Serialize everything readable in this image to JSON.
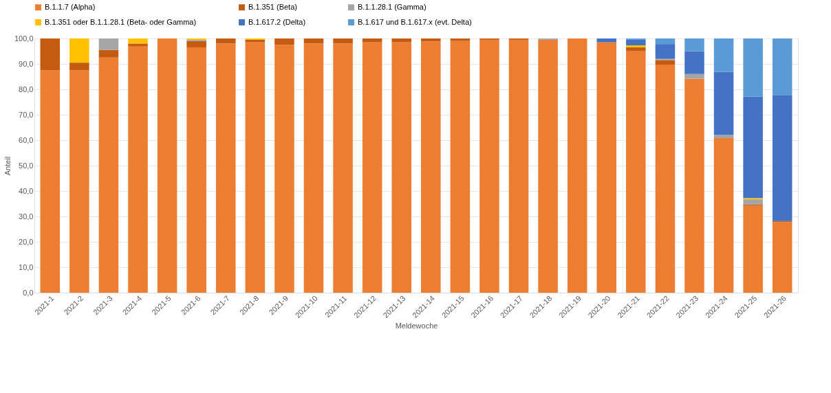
{
  "chart_data": {
    "type": "bar",
    "stacked": true,
    "xlabel": "Meldewoche",
    "ylabel": "Anteil",
    "categories": [
      "2021-1",
      "2021-2",
      "2021-3",
      "2021-4",
      "2021-5",
      "2021-6",
      "2021-7",
      "2021-8",
      "2021-9",
      "2021-10",
      "2021-11",
      "2021-12",
      "2021-13",
      "2021-14",
      "2021-15",
      "2021-16",
      "2021-17",
      "2021-18",
      "2021-19",
      "2021-20",
      "2021-21",
      "2021-22",
      "2021-23",
      "2021-24",
      "2021-25",
      "2021-26"
    ],
    "series": [
      {
        "name": "B.1.1.7 (Alpha)",
        "color": "#ed7d31",
        "values": [
          87.5,
          87.5,
          92.5,
          97,
          100,
          96.5,
          98,
          98.5,
          97.5,
          98,
          98,
          98.5,
          98.5,
          98.8,
          99,
          99.5,
          99.5,
          99.5,
          100,
          98.5,
          95,
          89.7,
          84.2,
          60.8,
          34.2,
          27.8
        ]
      },
      {
        "name": "B.1.351 (Beta)",
        "color": "#c55a11",
        "values": [
          12.5,
          3,
          3,
          1,
          0,
          2.5,
          2,
          1,
          2.5,
          2,
          2,
          1.5,
          1.5,
          1.2,
          1,
          0.5,
          0.5,
          0,
          0,
          0,
          1.5,
          1.8,
          0,
          0,
          0.5,
          0.4
        ]
      },
      {
        "name": "B.1.1.28.1 (Gamma)",
        "color": "#a5a5a5",
        "values": [
          0,
          0,
          4.5,
          0,
          0,
          0.5,
          0,
          0,
          0,
          0,
          0,
          0,
          0,
          0,
          0,
          null,
          null,
          0.5,
          0,
          0,
          0,
          0.5,
          1.8,
          1.2,
          2,
          0
        ]
      },
      {
        "name": "B.1.351 oder B.1.1.28.1 (Beta- oder Gamma)",
        "color": "#ffc000",
        "values": [
          0,
          9.5,
          0,
          2,
          0,
          0.5,
          0,
          0.5,
          0,
          0,
          0,
          0,
          0,
          0,
          0,
          0,
          0,
          0,
          0,
          0,
          0.8,
          0,
          0,
          0,
          0.5,
          0
        ]
      },
      {
        "name": "B.1.617.2 (Delta)",
        "color": "#4472c4",
        "values": [
          0,
          0,
          0,
          0,
          0,
          0,
          0,
          0,
          0,
          0,
          0,
          0,
          0,
          0,
          0,
          0,
          0,
          0,
          0,
          1.5,
          2.2,
          5.8,
          9,
          24.9,
          39.9,
          49.6
        ]
      },
      {
        "name": "B.1.617 und B.1.617.x (evt. Delta)",
        "color": "#5b9bd5",
        "values": [
          0,
          0,
          0,
          0,
          0,
          0,
          0,
          0,
          0,
          0,
          0,
          0,
          0,
          0,
          0,
          0,
          0,
          0,
          0,
          0,
          0.5,
          2.2,
          5,
          13.1,
          22.9,
          22.2
        ]
      }
    ],
    "ylim": [
      0,
      100
    ],
    "yticks": [
      {
        "value": 0,
        "label": "0,0"
      },
      {
        "value": 10,
        "label": "10,0"
      },
      {
        "value": 20,
        "label": "20,0"
      },
      {
        "value": 30,
        "label": "30,0"
      },
      {
        "value": 40,
        "label": "40,0"
      },
      {
        "value": 50,
        "label": "50,0"
      },
      {
        "value": 60,
        "label": "60,0"
      },
      {
        "value": 70,
        "label": "70,0"
      },
      {
        "value": 80,
        "label": "80,0"
      },
      {
        "value": 90,
        "label": "90,0"
      },
      {
        "value": 100,
        "label": "100,0"
      }
    ],
    "grid": "y",
    "legend": "top"
  }
}
